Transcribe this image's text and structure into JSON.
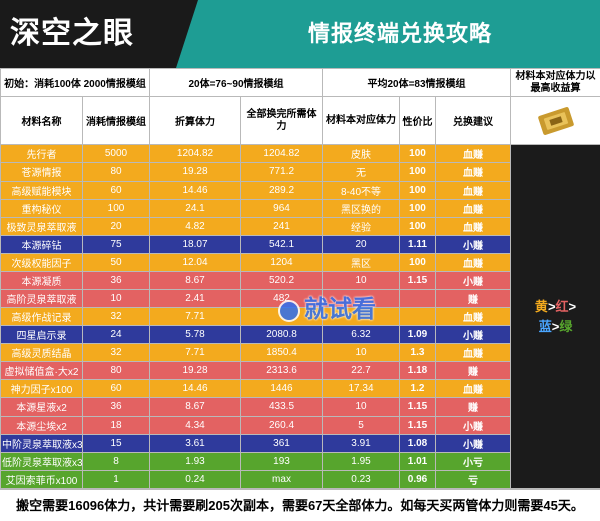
{
  "banner": {
    "logo": "深空之眼",
    "title": "情报终端兑换攻略"
  },
  "header1": {
    "initial": "初始：消耗100体 2000情报模组",
    "c20": "20体=76~90情报模组",
    "avg": "平均20体=83情报模组",
    "note": "材料本对应体力以最高收益算"
  },
  "header2": [
    "材料名称",
    "消耗情报模组",
    "折算体力",
    "全部换完所需体力",
    "材料本对应体力",
    "性价比",
    "兑换建议"
  ],
  "legend": {
    "yellow": "黄",
    "red": "红",
    "blue": "蓝",
    "green": "绿",
    "gt": ">"
  },
  "rows": [
    {
      "name": "先行者",
      "cost": "5000",
      "stamina": "1204.82",
      "total": "1204.82",
      "material": "皮肤",
      "ratio": "100",
      "advice": "血赚",
      "color": "yellow"
    },
    {
      "name": "苍源情报",
      "cost": "80",
      "stamina": "19.28",
      "total": "771.2",
      "material": "无",
      "ratio": "100",
      "advice": "血赚",
      "color": "yellow"
    },
    {
      "name": "高级赋能模块",
      "cost": "60",
      "stamina": "14.46",
      "total": "289.2",
      "material": "8-40不等",
      "ratio": "100",
      "advice": "血赚",
      "color": "yellow"
    },
    {
      "name": "重构秘仪",
      "cost": "100",
      "stamina": "24.1",
      "total": "964",
      "material": "黑区换的",
      "ratio": "100",
      "advice": "血赚",
      "color": "yellow"
    },
    {
      "name": "极致灵泉萃取液",
      "cost": "20",
      "stamina": "4.82",
      "total": "241",
      "material": "经验",
      "ratio": "100",
      "advice": "血赚",
      "color": "yellow"
    },
    {
      "name": "本源碎钻",
      "cost": "75",
      "stamina": "18.07",
      "total": "542.1",
      "material": "20",
      "ratio": "1.11",
      "advice": "小赚",
      "color": "blue"
    },
    {
      "name": "次级权能因子",
      "cost": "50",
      "stamina": "12.04",
      "total": "1204",
      "material": "黑区",
      "ratio": "100",
      "advice": "血赚",
      "color": "yellow"
    },
    {
      "name": "本源凝质",
      "cost": "36",
      "stamina": "8.67",
      "total": "520.2",
      "material": "10",
      "ratio": "1.15",
      "advice": "小赚",
      "color": "red"
    },
    {
      "name": "高阶灵泉萃取液",
      "cost": "10",
      "stamina": "2.41",
      "total": "482",
      "material": "",
      "ratio": "",
      "advice": "赚",
      "color": "red"
    },
    {
      "name": "高级作战记录",
      "cost": "32",
      "stamina": "7.71",
      "total": "",
      "material": "",
      "ratio": "",
      "advice": "血赚",
      "color": "yellow"
    },
    {
      "name": "四星启示录",
      "cost": "24",
      "stamina": "5.78",
      "total": "2080.8",
      "material": "6.32",
      "ratio": "1.09",
      "advice": "小赚",
      "color": "blue"
    },
    {
      "name": "高级灵质结晶",
      "cost": "32",
      "stamina": "7.71",
      "total": "1850.4",
      "material": "10",
      "ratio": "1.3",
      "advice": "血赚",
      "color": "yellow"
    },
    {
      "name": "虚拟储值盒·大x2",
      "cost": "80",
      "stamina": "19.28",
      "total": "2313.6",
      "material": "22.7",
      "ratio": "1.18",
      "advice": "赚",
      "color": "red"
    },
    {
      "name": "神力因子x100",
      "cost": "60",
      "stamina": "14.46",
      "total": "1446",
      "material": "17.34",
      "ratio": "1.2",
      "advice": "血赚",
      "color": "yellow"
    },
    {
      "name": "本源星液x2",
      "cost": "36",
      "stamina": "8.67",
      "total": "433.5",
      "material": "10",
      "ratio": "1.15",
      "advice": "赚",
      "color": "red"
    },
    {
      "name": "本源尘埃x2",
      "cost": "18",
      "stamina": "4.34",
      "total": "260.4",
      "material": "5",
      "ratio": "1.15",
      "advice": "小赚",
      "color": "red"
    },
    {
      "name": "中阶灵泉萃取液x3",
      "cost": "15",
      "stamina": "3.61",
      "total": "361",
      "material": "3.91",
      "ratio": "1.08",
      "advice": "小赚",
      "color": "blue"
    },
    {
      "name": "低阶灵泉萃取液x3",
      "cost": "8",
      "stamina": "1.93",
      "total": "193",
      "material": "1.95",
      "ratio": "1.01",
      "advice": "小亏",
      "color": "green"
    },
    {
      "name": "艾因索菲币x100",
      "cost": "1",
      "stamina": "0.24",
      "total": "max",
      "material": "0.23",
      "ratio": "0.96",
      "advice": "亏",
      "color": "green"
    }
  ],
  "footer": "搬空需要16096体力，共计需要刷205次副本，需要67天全部体力。如每天买两管体力则需要45天。",
  "watermark": "就试看",
  "colors": {
    "banner": "#1e9d94",
    "yellow": "#f3aa1e",
    "red": "#e36262",
    "blue": "#2f3a9c",
    "green": "#57a52d",
    "dark": "#1b1b1b"
  }
}
